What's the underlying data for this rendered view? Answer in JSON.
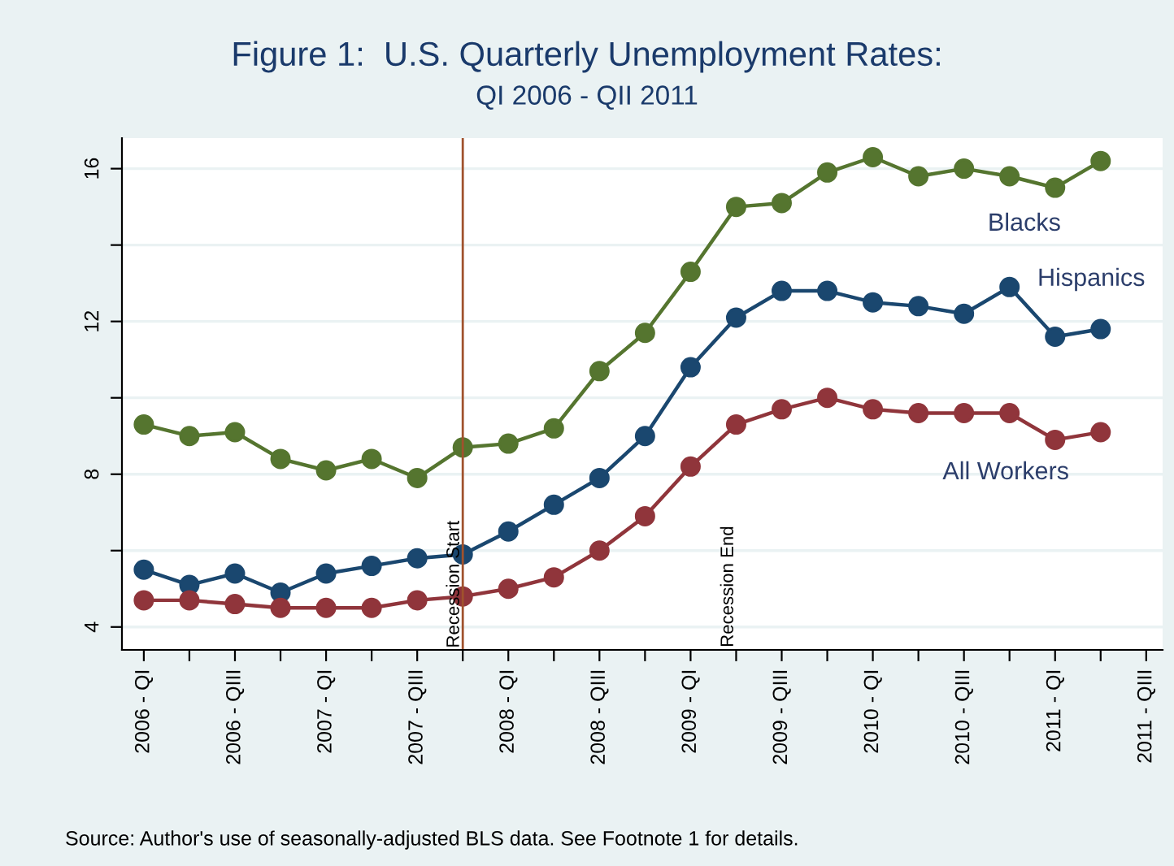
{
  "chart_data": {
    "type": "line",
    "title": "Figure 1:  U.S. Quarterly Unemployment Rates:",
    "subtitle": "QI 2006 - QII 2011",
    "x": [
      2006.0,
      2006.25,
      2006.5,
      2006.75,
      2007.0,
      2007.25,
      2007.5,
      2007.75,
      2008.0,
      2008.25,
      2008.5,
      2008.75,
      2009.0,
      2009.25,
      2009.5,
      2009.75,
      2010.0,
      2010.25,
      2010.5,
      2010.75,
      2011.0,
      2011.25
    ],
    "series": [
      {
        "name": "Blacks",
        "color": "#55752f",
        "values": [
          9.3,
          9.0,
          9.1,
          8.4,
          8.1,
          8.4,
          7.9,
          8.7,
          8.8,
          9.2,
          10.7,
          11.7,
          13.3,
          15.0,
          15.1,
          15.9,
          16.3,
          15.8,
          16.0,
          15.8,
          15.5,
          16.2
        ]
      },
      {
        "name": "Hispanics",
        "color": "#1a476f",
        "values": [
          5.5,
          5.1,
          5.4,
          4.9,
          5.4,
          5.6,
          5.8,
          5.9,
          6.5,
          7.2,
          7.9,
          9.0,
          10.8,
          12.1,
          12.8,
          12.8,
          12.5,
          12.4,
          12.2,
          12.9,
          11.6,
          11.8
        ]
      },
      {
        "name": "All Workers",
        "color": "#90353b",
        "values": [
          4.7,
          4.7,
          4.6,
          4.5,
          4.5,
          4.5,
          4.7,
          4.8,
          5.0,
          5.3,
          6.0,
          6.9,
          8.2,
          9.3,
          9.7,
          10.0,
          9.7,
          9.6,
          9.6,
          9.6,
          8.9,
          9.1
        ]
      }
    ],
    "xlim": [
      2005.88,
      2011.59
    ],
    "xticks": [
      {
        "value": 2006.0,
        "label": "2006 - QI"
      },
      {
        "value": 2006.25,
        "label": null
      },
      {
        "value": 2006.5,
        "label": "2006 - QIII"
      },
      {
        "value": 2006.75,
        "label": null
      },
      {
        "value": 2007.0,
        "label": "2007 - QI"
      },
      {
        "value": 2007.25,
        "label": null
      },
      {
        "value": 2007.5,
        "label": "2007 - QIII"
      },
      {
        "value": 2007.75,
        "label": null
      },
      {
        "value": 2008.0,
        "label": "2008 - QI"
      },
      {
        "value": 2008.25,
        "label": null
      },
      {
        "value": 2008.5,
        "label": "2008 - QIII"
      },
      {
        "value": 2008.75,
        "label": null
      },
      {
        "value": 2009.0,
        "label": "2009 - QI"
      },
      {
        "value": 2009.25,
        "label": null
      },
      {
        "value": 2009.5,
        "label": "2009 - QIII"
      },
      {
        "value": 2009.75,
        "label": null
      },
      {
        "value": 2010.0,
        "label": "2010 - QI"
      },
      {
        "value": 2010.25,
        "label": null
      },
      {
        "value": 2010.5,
        "label": "2010 - QIII"
      },
      {
        "value": 2010.75,
        "label": null
      },
      {
        "value": 2011.0,
        "label": "2011 - QI"
      },
      {
        "value": 2011.25,
        "label": null
      },
      {
        "value": 2011.5,
        "label": "2011 - QIII"
      }
    ],
    "ylim": [
      3.4,
      16.8
    ],
    "yticks": [
      4,
      {
        "value": 6,
        "label": null
      },
      8,
      {
        "value": 10,
        "label": null
      },
      12,
      {
        "value": 14,
        "label": null
      },
      16
    ],
    "grid": "y",
    "marker": "circle",
    "line_style": "solid",
    "legend": false,
    "ref_lines": [
      {
        "axis": "x",
        "value": 2007.75,
        "label": "Recession Start",
        "color": "#a0522d"
      }
    ],
    "annotations": [
      "Recession End",
      "Source: Author's use of seasonally-adjusted BLS data. See Footnote 1 for details."
    ]
  }
}
